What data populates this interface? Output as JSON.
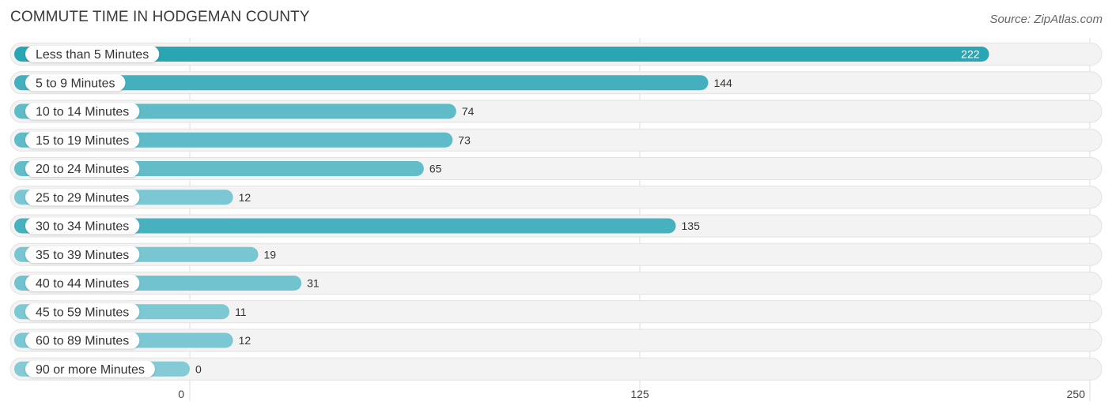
{
  "title": "COMMUTE TIME IN HODGEMAN COUNTY",
  "source": "Source: ZipAtlas.com",
  "colors": {
    "bar_strong": "#2aa5b4",
    "bar_light": "#84cbd6",
    "track": "#f3f3f3",
    "track_border": "#e2e2e2",
    "grid": "#dddddd"
  },
  "chart_data": {
    "type": "bar",
    "orientation": "horizontal",
    "title": "COMMUTE TIME IN HODGEMAN COUNTY",
    "categories": [
      "Less than 5 Minutes",
      "5 to 9 Minutes",
      "10 to 14 Minutes",
      "15 to 19 Minutes",
      "20 to 24 Minutes",
      "25 to 29 Minutes",
      "30 to 34 Minutes",
      "35 to 39 Minutes",
      "40 to 44 Minutes",
      "45 to 59 Minutes",
      "60 to 89 Minutes",
      "90 or more Minutes"
    ],
    "values": [
      222,
      144,
      74,
      73,
      65,
      12,
      135,
      19,
      31,
      11,
      12,
      0
    ],
    "xlim": [
      0,
      250
    ],
    "xticks": [
      0,
      125,
      250
    ],
    "xlabel": "",
    "ylabel": "",
    "grid": true
  }
}
